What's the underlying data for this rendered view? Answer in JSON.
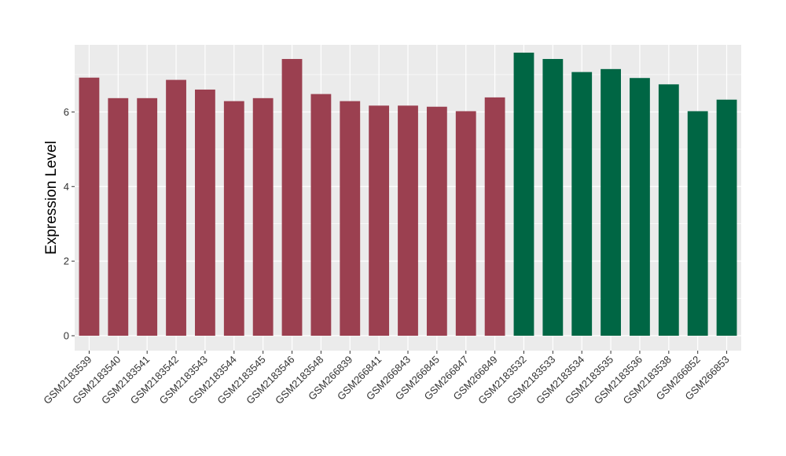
{
  "chart_data": {
    "type": "bar",
    "ylabel": "Expression Level",
    "xlabel": "",
    "ylim": [
      -0.4,
      7.8
    ],
    "yticks": [
      0,
      2,
      4,
      6
    ],
    "grid": true,
    "categories": [
      "GSM2183539",
      "GSM2183540",
      "GSM2183541",
      "GSM2183542",
      "GSM2183543",
      "GSM2183544",
      "GSM2183545",
      "GSM2183546",
      "GSM2183548",
      "GSM266839",
      "GSM266841",
      "GSM266843",
      "GSM266845",
      "GSM266847",
      "GSM266849",
      "GSM2183532",
      "GSM2183533",
      "GSM2183534",
      "GSM2183535",
      "GSM2183536",
      "GSM2183538",
      "GSM266852",
      "GSM266853"
    ],
    "values": [
      6.92,
      6.37,
      6.37,
      6.86,
      6.6,
      6.29,
      6.37,
      7.42,
      6.48,
      6.29,
      6.17,
      6.17,
      6.14,
      6.02,
      6.39,
      7.59,
      7.42,
      7.07,
      7.15,
      6.91,
      6.74,
      6.02,
      6.33
    ],
    "groups": [
      0,
      0,
      0,
      0,
      0,
      0,
      0,
      0,
      0,
      0,
      0,
      0,
      0,
      0,
      0,
      1,
      1,
      1,
      1,
      1,
      1,
      1,
      1
    ],
    "group_colors": [
      "#9b4050",
      "#006644"
    ],
    "panel_background": "#ebebeb",
    "grid_color": "#ffffff"
  }
}
